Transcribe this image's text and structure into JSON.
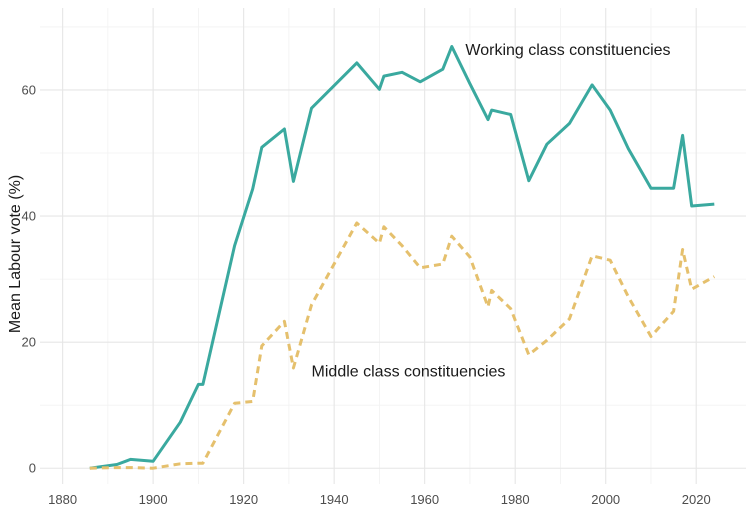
{
  "chart_data": {
    "type": "line",
    "title": "",
    "xlabel": "",
    "ylabel": "Mean Labour vote (%)",
    "xlim": [
      1875,
      2031
    ],
    "ylim": [
      -2.5,
      73
    ],
    "x_ticks": [
      1880,
      1900,
      1920,
      1940,
      1960,
      1980,
      2000,
      2020
    ],
    "y_ticks": [
      0,
      20,
      40,
      60
    ],
    "grid": true,
    "legend": "none",
    "series": [
      {
        "name": "Working class constituencies",
        "color": "#3aa99f",
        "style": "solid",
        "x": [
          1886,
          1892,
          1895,
          1900,
          1906,
          1910,
          1911,
          1918,
          1922,
          1924,
          1929,
          1931,
          1935,
          1945,
          1950,
          1951,
          1955,
          1959,
          1964,
          1966,
          1970,
          1974,
          1974.8,
          1979,
          1983,
          1987,
          1992,
          1997,
          2001,
          2005,
          2010,
          2015,
          2017,
          2019,
          2024
        ],
        "y": [
          0,
          0.6,
          1.4,
          1.1,
          7.3,
          13.3,
          13.3,
          35.3,
          44.3,
          50.9,
          53.8,
          45.5,
          57.1,
          64.3,
          60.1,
          62.2,
          62.8,
          61.3,
          63.3,
          66.9,
          61.0,
          55.3,
          56.8,
          56.1,
          45.6,
          51.4,
          54.7,
          60.8,
          56.8,
          50.7,
          44.4,
          44.4,
          52.8,
          41.6,
          41.9
        ]
      },
      {
        "name": "Middle class constituencies",
        "color": "#e5c06d",
        "style": "dashed",
        "x": [
          1886,
          1892,
          1895,
          1900,
          1906,
          1910,
          1911,
          1918,
          1922,
          1924,
          1929,
          1931,
          1935,
          1945,
          1950,
          1951,
          1955,
          1959,
          1964,
          1966,
          1970,
          1974,
          1974.8,
          1979,
          1983,
          1987,
          1992,
          1997,
          2001,
          2005,
          2010,
          2015,
          2017,
          2019,
          2024
        ],
        "y": [
          0,
          0.1,
          0.1,
          0.0,
          0.7,
          0.8,
          0.8,
          10.3,
          10.6,
          19.4,
          23.3,
          15.9,
          25.9,
          38.9,
          35.7,
          38.3,
          35.3,
          31.8,
          32.4,
          36.8,
          33.5,
          25.6,
          28.2,
          25.3,
          18.0,
          20.3,
          23.7,
          33.7,
          33.0,
          27.2,
          20.9,
          24.9,
          34.7,
          28.4,
          30.4
        ]
      }
    ],
    "annotations": [
      {
        "text": "Working class constituencies",
        "x": 1969,
        "y": 66.5
      },
      {
        "text": "Middle class constituencies",
        "x": 1935,
        "y": 15.5
      }
    ]
  }
}
